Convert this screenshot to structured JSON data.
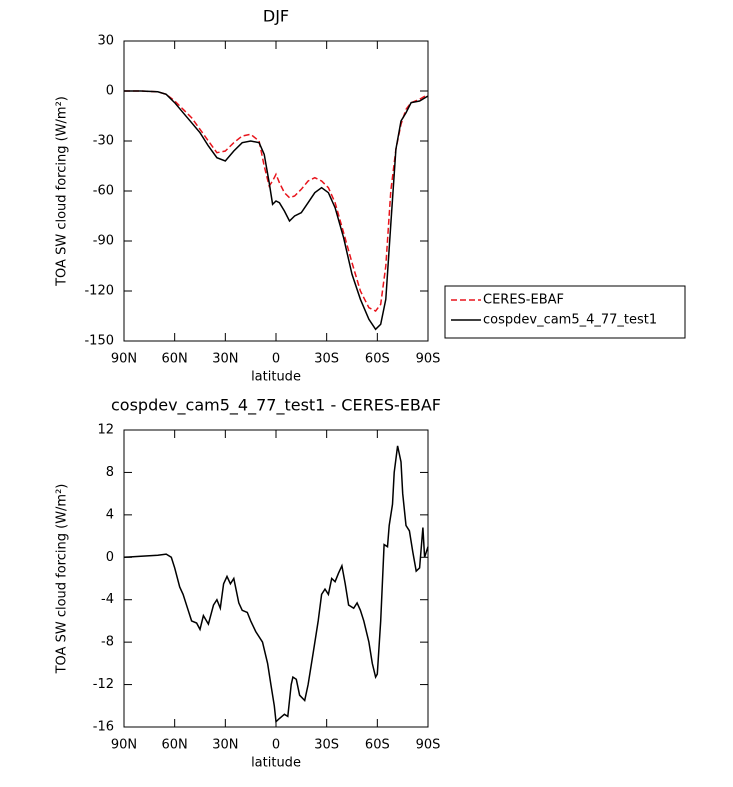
{
  "chart_data": [
    {
      "type": "line",
      "title": "DJF",
      "x_label": "latitude",
      "y_label": "TOA SW cloud forcing (W/m²)",
      "x": [
        90,
        80,
        70,
        65,
        60,
        55,
        50,
        45,
        40,
        35,
        30,
        25,
        20,
        15,
        10,
        7,
        4,
        2,
        0,
        -2,
        -5,
        -8,
        -11,
        -15,
        -19,
        -23,
        -27,
        -31,
        -35,
        -40,
        -45,
        -50,
        -55,
        -59,
        -62,
        -65,
        -68,
        -71,
        -74,
        -77,
        -80,
        -85,
        -90
      ],
      "series": [
        {
          "name": "CERES-EBAF",
          "color": "#e8141c",
          "line_style": "dashed",
          "values": [
            0,
            0,
            -0.5,
            -2,
            -6,
            -11,
            -16,
            -23,
            -30,
            -37,
            -36,
            -31,
            -27,
            -26,
            -30,
            -45,
            -57,
            -54,
            -50,
            -55,
            -61,
            -64,
            -63,
            -59,
            -54,
            -52,
            -54,
            -58,
            -67,
            -85,
            -103,
            -120,
            -130,
            -132,
            -128,
            -105,
            -60,
            -35,
            -20,
            -11,
            -7,
            -5,
            -2
          ]
        },
        {
          "name": "cospdev_cam5_4_77_test1",
          "color": "#000000",
          "line_style": "solid",
          "values": [
            0,
            0,
            -0.5,
            -2,
            -7,
            -13,
            -19,
            -25,
            -33,
            -40,
            -42,
            -36,
            -31,
            -30,
            -31,
            -38,
            -55,
            -68,
            -66,
            -67,
            -72,
            -78,
            -75,
            -73,
            -67,
            -61,
            -58,
            -61,
            -70,
            -88,
            -110,
            -125,
            -137,
            -143,
            -140,
            -125,
            -80,
            -35,
            -18,
            -13,
            -7,
            -6,
            -3
          ]
        }
      ],
      "xlim": [
        90,
        -90
      ],
      "xticks": [
        {
          "value": 90,
          "label": "90N"
        },
        {
          "value": 60,
          "label": "60N"
        },
        {
          "value": 30,
          "label": "30N"
        },
        0,
        {
          "value": -30,
          "label": "30S"
        },
        {
          "value": -60,
          "label": "60S"
        },
        {
          "value": -90,
          "label": "90S"
        }
      ],
      "ylim": [
        -150,
        30
      ],
      "yticks": [
        -150,
        -120,
        -90,
        -60,
        -30,
        0,
        30
      ],
      "legend": "outside-right"
    },
    {
      "type": "line",
      "title": "cospdev_cam5_4_77_test1 - CERES-EBAF",
      "x_label": "latitude",
      "y_label": "TOA SW cloud forcing (W/m²)",
      "x": [
        90,
        80,
        70,
        65,
        62,
        60,
        57,
        55,
        52,
        50,
        47,
        45,
        43,
        40,
        37,
        35,
        33,
        31,
        29,
        27,
        25,
        22,
        20,
        17,
        15,
        12,
        8,
        5,
        3,
        1,
        0,
        -2,
        -5,
        -7,
        -9,
        -10,
        -12,
        -14,
        -17,
        -19,
        -22,
        -25,
        -27,
        -29,
        -31,
        -33,
        -35,
        -37,
        -39,
        -41,
        -43,
        -46,
        -48,
        -50,
        -52,
        -55,
        -57,
        -59,
        -60,
        -62,
        -64,
        -66,
        -67,
        -69,
        -70,
        -72,
        -74,
        -75,
        -77,
        -79,
        -81,
        -83,
        -85,
        -87,
        -88,
        -90
      ],
      "series": [
        {
          "name": null,
          "color": "#000000",
          "line_style": "solid",
          "values": [
            0,
            0.1,
            0.2,
            0.3,
            0,
            -1,
            -2.8,
            -3.5,
            -5,
            -6,
            -6.2,
            -6.8,
            -5.5,
            -6.3,
            -4.5,
            -4,
            -4.8,
            -2.5,
            -1.8,
            -2.5,
            -2,
            -4.3,
            -5,
            -5.2,
            -6,
            -7,
            -8,
            -10,
            -12,
            -14,
            -15.5,
            -15.2,
            -14.8,
            -15,
            -12,
            -11.3,
            -11.5,
            -13,
            -13.5,
            -12,
            -9,
            -6,
            -3.5,
            -3,
            -3.5,
            -2,
            -2.3,
            -1.5,
            -0.8,
            -2.5,
            -4.5,
            -4.8,
            -4.3,
            -5,
            -6,
            -8,
            -10,
            -11.3,
            -11,
            -6,
            1.2,
            1,
            3,
            5,
            8,
            10.5,
            9,
            6,
            3,
            2.5,
            0.5,
            -1.3,
            -1,
            2.8,
            0,
            1
          ]
        }
      ],
      "xlim": [
        90,
        -90
      ],
      "xticks": [
        {
          "value": 90,
          "label": "90N"
        },
        {
          "value": 60,
          "label": "60N"
        },
        {
          "value": 30,
          "label": "30N"
        },
        0,
        {
          "value": -30,
          "label": "30S"
        },
        {
          "value": -60,
          "label": "60S"
        },
        {
          "value": -90,
          "label": "90S"
        }
      ],
      "ylim": [
        -16,
        12
      ],
      "yticks": [
        -16,
        -12,
        -8,
        -4,
        0,
        4,
        8,
        12
      ]
    }
  ]
}
